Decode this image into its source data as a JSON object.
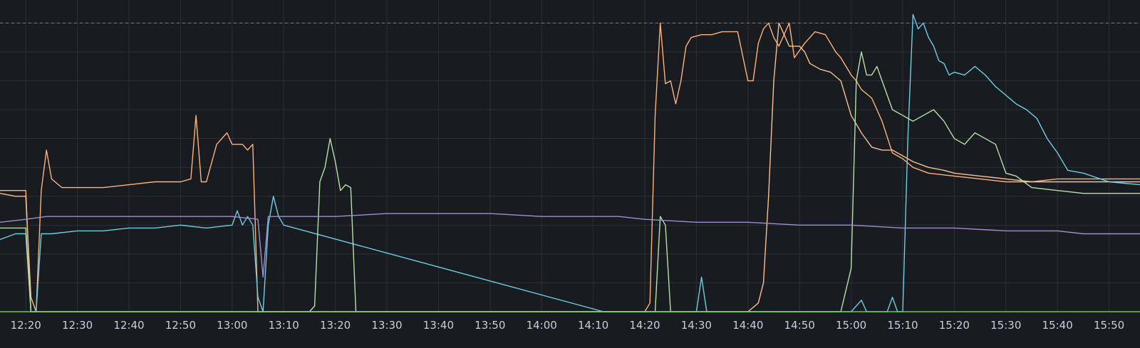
{
  "chart_data": {
    "type": "line",
    "theme": {
      "background": "#181b1f",
      "grid": "#2c2f35",
      "threshold": "#6e7076",
      "axis_text": "#ccccdc",
      "baseline": "#73bf69"
    },
    "x_ticks": [
      "12:20",
      "12:30",
      "12:40",
      "12:50",
      "13:00",
      "13:10",
      "13:20",
      "13:30",
      "13:40",
      "13:50",
      "14:00",
      "14:10",
      "14:20",
      "14:30",
      "14:40",
      "14:50",
      "15:00",
      "15:10",
      "15:20",
      "15:30",
      "15:40",
      "15:50"
    ],
    "xlim": [
      "12:15",
      "15:56"
    ],
    "ylim": [
      0,
      108
    ],
    "y_grid": [
      10,
      20,
      30,
      40,
      50,
      60,
      70,
      80,
      90,
      100
    ],
    "threshold": 100,
    "grid": true,
    "series": [
      {
        "color": "#ffb27a",
        "points": [
          [
            "12:15",
            42
          ],
          [
            "12:18",
            42
          ],
          [
            "12:20",
            42
          ],
          [
            "12:21",
            0
          ],
          [
            "12:22",
            0
          ],
          [
            "12:23",
            42
          ],
          [
            "12:24",
            56
          ],
          [
            "12:25",
            46
          ],
          [
            "12:27",
            43
          ],
          [
            "12:30",
            43
          ],
          [
            "12:35",
            43
          ],
          [
            "12:40",
            44
          ],
          [
            "12:45",
            45
          ],
          [
            "12:50",
            45
          ],
          [
            "12:52",
            46
          ],
          [
            "12:53",
            68
          ],
          [
            "12:54",
            45
          ],
          [
            "12:55",
            45
          ],
          [
            "12:57",
            58
          ],
          [
            "12:59",
            62
          ],
          [
            "13:00",
            58
          ],
          [
            "13:02",
            58
          ],
          [
            "13:03",
            56
          ],
          [
            "13:04",
            58
          ],
          [
            "13:05",
            0
          ],
          [
            "13:06",
            0
          ],
          [
            "13:10",
            0
          ],
          [
            "14:20",
            0
          ],
          [
            "14:21",
            3
          ],
          [
            "14:22",
            68
          ],
          [
            "14:23",
            100
          ],
          [
            "14:24",
            79
          ],
          [
            "14:25",
            80
          ],
          [
            "14:26",
            72
          ],
          [
            "14:27",
            80
          ],
          [
            "14:28",
            92
          ],
          [
            "14:29",
            95
          ],
          [
            "14:31",
            96
          ],
          [
            "14:33",
            96
          ],
          [
            "14:35",
            97
          ],
          [
            "14:38",
            97
          ],
          [
            "14:40",
            80
          ],
          [
            "14:41",
            80
          ],
          [
            "14:42",
            93
          ],
          [
            "14:43",
            98
          ],
          [
            "14:44",
            100
          ],
          [
            "14:45",
            95
          ],
          [
            "14:46",
            92
          ],
          [
            "14:48",
            100
          ],
          [
            "14:49",
            88
          ],
          [
            "14:51",
            93
          ],
          [
            "14:53",
            97
          ],
          [
            "14:55",
            96
          ],
          [
            "14:57",
            90
          ],
          [
            "14:58",
            88
          ],
          [
            "15:00",
            82
          ],
          [
            "15:01",
            80
          ],
          [
            "15:02",
            77
          ],
          [
            "15:04",
            74
          ],
          [
            "15:06",
            66
          ],
          [
            "15:08",
            55
          ],
          [
            "15:10",
            53
          ],
          [
            "15:12",
            50
          ],
          [
            "15:15",
            48
          ],
          [
            "15:20",
            47
          ],
          [
            "15:25",
            46
          ],
          [
            "15:30",
            45
          ],
          [
            "15:35",
            45
          ],
          [
            "15:40",
            46
          ],
          [
            "15:45",
            46
          ],
          [
            "15:50",
            46
          ],
          [
            "15:56",
            46
          ]
        ]
      },
      {
        "color": "#fac08f",
        "points": [
          [
            "12:15",
            41
          ],
          [
            "12:18",
            40
          ],
          [
            "12:20",
            40
          ],
          [
            "12:21",
            5
          ],
          [
            "12:22",
            0
          ],
          [
            "12:25",
            0
          ],
          [
            "13:05",
            0
          ],
          [
            "14:20",
            0
          ],
          [
            "14:40",
            0
          ],
          [
            "14:42",
            3
          ],
          [
            "14:43",
            10
          ],
          [
            "14:44",
            40
          ],
          [
            "14:45",
            80
          ],
          [
            "14:46",
            100
          ],
          [
            "14:47",
            96
          ],
          [
            "14:48",
            92
          ],
          [
            "14:50",
            92
          ],
          [
            "14:51",
            90
          ],
          [
            "14:52",
            86
          ],
          [
            "14:54",
            84
          ],
          [
            "14:56",
            83
          ],
          [
            "14:58",
            80
          ],
          [
            "15:00",
            68
          ],
          [
            "15:02",
            62
          ],
          [
            "15:04",
            57
          ],
          [
            "15:06",
            56
          ],
          [
            "15:08",
            56
          ],
          [
            "15:10",
            54
          ],
          [
            "15:12",
            52
          ],
          [
            "15:15",
            50
          ],
          [
            "15:18",
            49
          ],
          [
            "15:20",
            48
          ],
          [
            "15:25",
            47
          ],
          [
            "15:30",
            46
          ],
          [
            "15:35",
            45
          ],
          [
            "15:40",
            45
          ],
          [
            "15:45",
            45
          ],
          [
            "15:50",
            45
          ],
          [
            "15:56",
            45
          ]
        ]
      },
      {
        "color": "#6ccfe2",
        "points": [
          [
            "12:15",
            25
          ],
          [
            "12:18",
            27
          ],
          [
            "12:20",
            27
          ],
          [
            "12:21",
            0
          ],
          [
            "12:22",
            0
          ],
          [
            "12:23",
            27
          ],
          [
            "12:25",
            27
          ],
          [
            "12:30",
            28
          ],
          [
            "12:35",
            28
          ],
          [
            "12:40",
            29
          ],
          [
            "12:45",
            29
          ],
          [
            "12:50",
            30
          ],
          [
            "12:55",
            29
          ],
          [
            "13:00",
            30
          ],
          [
            "13:01",
            35
          ],
          [
            "13:02",
            30
          ],
          [
            "13:03",
            33
          ],
          [
            "13:04",
            30
          ],
          [
            "13:05",
            5
          ],
          [
            "13:06",
            0
          ],
          [
            "13:07",
            30
          ],
          [
            "13:08",
            40
          ],
          [
            "13:09",
            33
          ],
          [
            "13:10",
            30
          ],
          [
            "14:12",
            0
          ],
          [
            "14:20",
            0
          ],
          [
            "14:30",
            0
          ],
          [
            "14:31",
            12
          ],
          [
            "14:32",
            0
          ],
          [
            "14:40",
            0
          ],
          [
            "15:00",
            0
          ],
          [
            "15:02",
            4
          ],
          [
            "15:03",
            0
          ],
          [
            "15:07",
            0
          ],
          [
            "15:08",
            5
          ],
          [
            "15:09",
            0
          ],
          [
            "15:10",
            0
          ],
          [
            "15:11",
            60
          ],
          [
            "15:12",
            103
          ],
          [
            "15:13",
            98
          ],
          [
            "15:14",
            100
          ],
          [
            "15:15",
            95
          ],
          [
            "15:16",
            92
          ],
          [
            "15:17",
            87
          ],
          [
            "15:18",
            86
          ],
          [
            "15:19",
            82
          ],
          [
            "15:20",
            83
          ],
          [
            "15:22",
            82
          ],
          [
            "15:24",
            85
          ],
          [
            "15:26",
            82
          ],
          [
            "15:28",
            78
          ],
          [
            "15:30",
            75
          ],
          [
            "15:32",
            72
          ],
          [
            "15:34",
            70
          ],
          [
            "15:36",
            67
          ],
          [
            "15:38",
            60
          ],
          [
            "15:40",
            55
          ],
          [
            "15:42",
            49
          ],
          [
            "15:45",
            48
          ],
          [
            "15:50",
            45
          ],
          [
            "15:56",
            44
          ]
        ]
      },
      {
        "color": "#b5e3a7",
        "points": [
          [
            "12:15",
            29
          ],
          [
            "12:20",
            29
          ],
          [
            "12:21",
            0
          ],
          [
            "12:22",
            0
          ],
          [
            "12:30",
            0
          ],
          [
            "13:15",
            0
          ],
          [
            "13:16",
            2
          ],
          [
            "13:17",
            45
          ],
          [
            "13:18",
            50
          ],
          [
            "13:19",
            60
          ],
          [
            "13:20",
            52
          ],
          [
            "13:21",
            42
          ],
          [
            "13:22",
            44
          ],
          [
            "13:23",
            43
          ],
          [
            "13:24",
            0
          ],
          [
            "13:25",
            0
          ],
          [
            "14:20",
            0
          ],
          [
            "14:22",
            0
          ],
          [
            "14:23",
            33
          ],
          [
            "14:24",
            30
          ],
          [
            "14:25",
            0
          ],
          [
            "14:30",
            0
          ],
          [
            "14:58",
            0
          ],
          [
            "15:00",
            15
          ],
          [
            "15:01",
            80
          ],
          [
            "15:02",
            90
          ],
          [
            "15:03",
            82
          ],
          [
            "15:04",
            82
          ],
          [
            "15:05",
            85
          ],
          [
            "15:06",
            80
          ],
          [
            "15:08",
            70
          ],
          [
            "15:10",
            68
          ],
          [
            "15:12",
            66
          ],
          [
            "15:14",
            68
          ],
          [
            "15:16",
            70
          ],
          [
            "15:18",
            66
          ],
          [
            "15:20",
            60
          ],
          [
            "15:22",
            58
          ],
          [
            "15:24",
            62
          ],
          [
            "15:26",
            60
          ],
          [
            "15:28",
            58
          ],
          [
            "15:30",
            48
          ],
          [
            "15:32",
            47
          ],
          [
            "15:35",
            43
          ],
          [
            "15:40",
            42
          ],
          [
            "15:45",
            41
          ],
          [
            "15:50",
            41
          ],
          [
            "15:56",
            41
          ]
        ]
      },
      {
        "color": "#a08ed1",
        "points": [
          [
            "12:15",
            31
          ],
          [
            "12:20",
            32
          ],
          [
            "12:24",
            33
          ],
          [
            "12:30",
            33
          ],
          [
            "12:40",
            33
          ],
          [
            "12:50",
            33
          ],
          [
            "13:00",
            33
          ],
          [
            "13:05",
            32
          ],
          [
            "13:06",
            12
          ],
          [
            "13:07",
            33
          ],
          [
            "13:10",
            33
          ],
          [
            "13:20",
            33
          ],
          [
            "13:30",
            34
          ],
          [
            "13:40",
            34
          ],
          [
            "13:50",
            34
          ],
          [
            "14:00",
            33
          ],
          [
            "14:10",
            33
          ],
          [
            "14:15",
            33
          ],
          [
            "14:20",
            32
          ],
          [
            "14:30",
            31
          ],
          [
            "14:40",
            31
          ],
          [
            "14:50",
            30
          ],
          [
            "15:00",
            30
          ],
          [
            "15:10",
            29
          ],
          [
            "15:20",
            29
          ],
          [
            "15:30",
            28
          ],
          [
            "15:40",
            28
          ],
          [
            "15:45",
            27
          ],
          [
            "15:50",
            27
          ],
          [
            "15:56",
            27
          ]
        ]
      }
    ]
  }
}
